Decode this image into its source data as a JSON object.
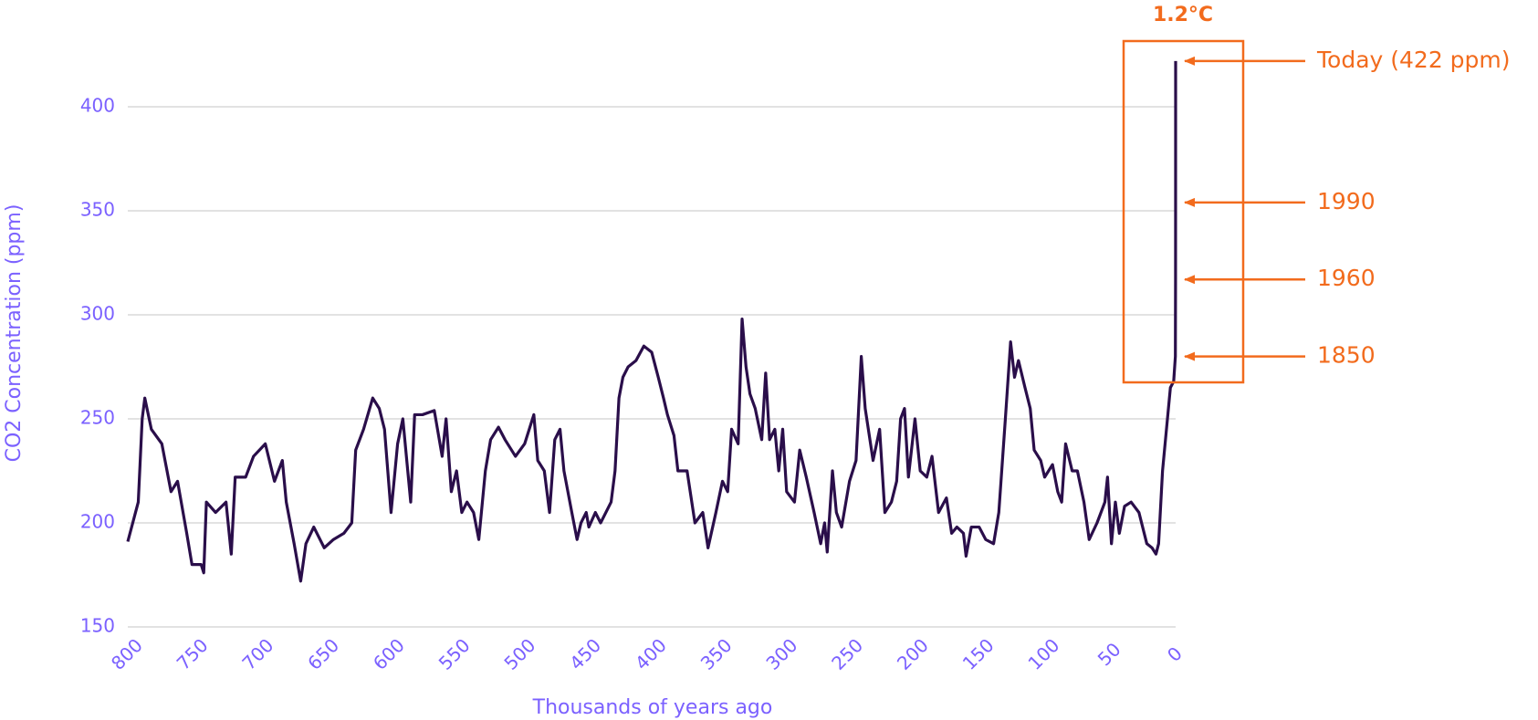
{
  "chart_data": {
    "type": "line",
    "x_label": "Thousands of years ago",
    "y_label": "CO2 Concentration (ppm)",
    "color": "#2a0e4a",
    "grid": true,
    "xlim": [
      800,
      0
    ],
    "ylim": [
      150,
      400
    ],
    "xticks": [
      800,
      750,
      700,
      650,
      600,
      550,
      500,
      450,
      400,
      350,
      300,
      250,
      200,
      150,
      100,
      50,
      0
    ],
    "yticks": [
      150,
      200,
      250,
      300,
      350,
      400
    ],
    "x": [
      800,
      792,
      789,
      787,
      782,
      774,
      767,
      762,
      755,
      751,
      744,
      742,
      740,
      733,
      725,
      721,
      718,
      710,
      704,
      695,
      688,
      682,
      679,
      673,
      668,
      664,
      658,
      650,
      643,
      635,
      629,
      626,
      620,
      613,
      608,
      604,
      599,
      594,
      590,
      584,
      581,
      575,
      566,
      560,
      557,
      553,
      549,
      545,
      541,
      536,
      532,
      527,
      523,
      517,
      512,
      504,
      497,
      490,
      487,
      482,
      478,
      474,
      470,
      467,
      461,
      457,
      454,
      450,
      448,
      443,
      439,
      431,
      428,
      425,
      422,
      418,
      412,
      406,
      400,
      395,
      391,
      388,
      383,
      380,
      373,
      367,
      361,
      357,
      351,
      346,
      342,
      339,
      334,
      331,
      328,
      325,
      321,
      316,
      313,
      310,
      306,
      303,
      300,
      297,
      291,
      287,
      282,
      276,
      271,
      268,
      266,
      262,
      259,
      255,
      249,
      244,
      240,
      237,
      231,
      226,
      222,
      217,
      213,
      210,
      207,
      204,
      199,
      195,
      190,
      186,
      181,
      175,
      171,
      167,
      162,
      160,
      156,
      150,
      145,
      139,
      135,
      130,
      126,
      123,
      120,
      115,
      111,
      108,
      103,
      100,
      94,
      90,
      87,
      84,
      79,
      75,
      70,
      66,
      60,
      54,
      52,
      49,
      46,
      43,
      39,
      34,
      28,
      22,
      18,
      15,
      13,
      10,
      7,
      4,
      1.5,
      0.2,
      0.06,
      0.03,
      0
    ],
    "values": [
      191,
      210,
      250,
      260,
      245,
      238,
      215,
      220,
      195,
      180,
      180,
      176,
      210,
      205,
      210,
      185,
      222,
      222,
      232,
      238,
      220,
      230,
      210,
      190,
      172,
      190,
      198,
      188,
      192,
      195,
      200,
      235,
      245,
      260,
      255,
      245,
      205,
      238,
      250,
      210,
      252,
      252,
      254,
      232,
      250,
      215,
      225,
      205,
      210,
      205,
      192,
      225,
      240,
      246,
      240,
      232,
      238,
      252,
      230,
      225,
      205,
      240,
      245,
      225,
      205,
      192,
      200,
      205,
      198,
      205,
      200,
      210,
      225,
      260,
      270,
      275,
      278,
      285,
      282,
      270,
      260,
      252,
      242,
      225,
      225,
      200,
      205,
      188,
      205,
      220,
      215,
      245,
      238,
      298,
      275,
      262,
      255,
      240,
      272,
      240,
      245,
      225,
      245,
      215,
      210,
      235,
      222,
      205,
      190,
      200,
      186,
      225,
      205,
      198,
      220,
      230,
      280,
      255,
      230,
      245,
      205,
      210,
      220,
      250,
      255,
      222,
      250,
      225,
      222,
      232,
      205,
      212,
      195,
      198,
      195,
      184,
      198,
      198,
      192,
      190,
      205,
      250,
      287,
      270,
      278,
      265,
      255,
      235,
      230,
      222,
      228,
      215,
      210,
      238,
      225,
      225,
      210,
      192,
      200,
      210,
      222,
      190,
      210,
      195,
      208,
      210,
      205,
      190,
      188,
      185,
      190,
      225,
      245,
      265,
      268,
      280,
      317,
      354,
      422
    ],
    "box_title": "1.2°C",
    "annotations": [
      {
        "text": "Today (422 ppm)",
        "y": 422
      },
      {
        "text": "1990",
        "y": 354
      },
      {
        "text": "1960",
        "y": 317
      },
      {
        "text": "1850",
        "y": 280
      }
    ]
  }
}
